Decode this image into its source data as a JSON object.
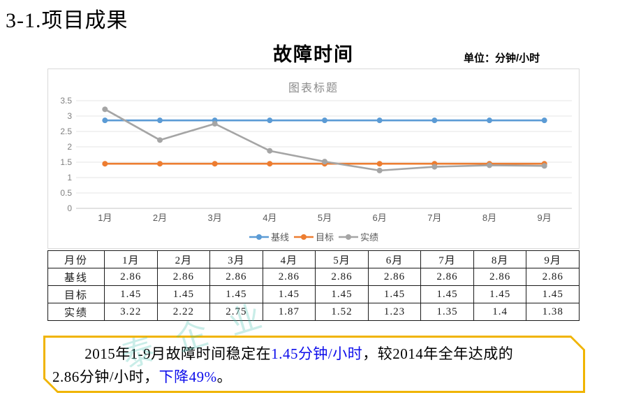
{
  "page": {
    "title": "3-1.项目成果"
  },
  "chart_header": {
    "title": "故障时间",
    "unit": "单位：分钟/小时"
  },
  "chart_data": {
    "type": "line",
    "title": "图表标题",
    "categories": [
      "1月",
      "2月",
      "3月",
      "4月",
      "5月",
      "6月",
      "7月",
      "8月",
      "9月"
    ],
    "series": [
      {
        "name": "基线",
        "color": "#5B9BD5",
        "values": [
          2.86,
          2.86,
          2.86,
          2.86,
          2.86,
          2.86,
          2.86,
          2.86,
          2.86
        ]
      },
      {
        "name": "目标",
        "color": "#ED7D31",
        "values": [
          1.45,
          1.45,
          1.45,
          1.45,
          1.45,
          1.45,
          1.45,
          1.45,
          1.45
        ]
      },
      {
        "name": "实绩",
        "color": "#A5A5A5",
        "values": [
          3.22,
          2.22,
          2.75,
          1.87,
          1.52,
          1.23,
          1.35,
          1.4,
          1.38
        ]
      }
    ],
    "ylim": [
      0,
      3.5
    ],
    "ytick_step": 0.5,
    "grid": true,
    "legend_position": "bottom",
    "grid_color": "#e4e4e4",
    "axis_color": "#c4c4c4",
    "tick_color": "#808080",
    "xlabel_color": "#595959"
  },
  "table": {
    "header": [
      "月份",
      "1月",
      "2月",
      "3月",
      "4月",
      "5月",
      "6月",
      "7月",
      "8月",
      "9月"
    ],
    "rows": [
      {
        "label": "基线",
        "values": [
          "2.86",
          "2.86",
          "2.86",
          "2.86",
          "2.86",
          "2.86",
          "2.86",
          "2.86",
          "2.86"
        ]
      },
      {
        "label": "目标",
        "values": [
          "1.45",
          "1.45",
          "1.45",
          "1.45",
          "1.45",
          "1.45",
          "1.45",
          "1.45",
          "1.45"
        ]
      },
      {
        "label": "实绩",
        "values": [
          "3.22",
          "2.22",
          "2.75",
          "1.87",
          "1.52",
          "1.23",
          "1.35",
          "1.4",
          "1.38"
        ]
      }
    ]
  },
  "summary": {
    "border_color": "#F0B400",
    "highlight_color": "#0D0DEB",
    "segments": [
      {
        "text": "2015年1-9月故障时间稳定在",
        "color": "#000000"
      },
      {
        "text": "1.45分钟/小时",
        "color": "#0D0DEB"
      },
      {
        "text": "，较2014年全年达成的",
        "color": "#000000",
        "br_after": true
      },
      {
        "text": "2.86分钟/小时，",
        "color": "#000000"
      },
      {
        "text": "下降49%",
        "color": "#0D0DEB"
      },
      {
        "text": "。",
        "color": "#000000"
      }
    ]
  },
  "watermark": {
    "text": "泰企业",
    "color": "#3FBFAE"
  }
}
